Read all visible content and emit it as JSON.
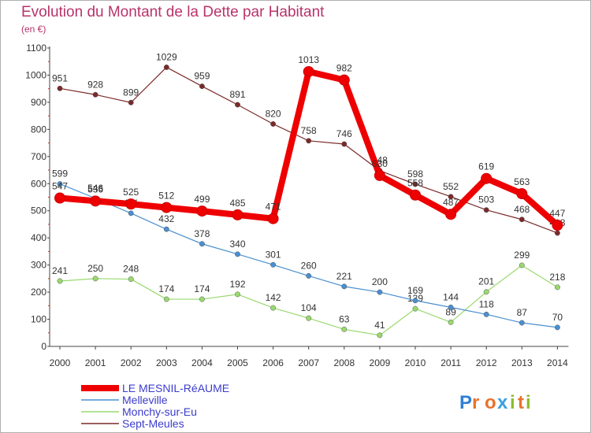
{
  "chart_data": {
    "type": "line",
    "title": "Evolution du Montant de la Dette par Habitant",
    "subtitle": "(en €)",
    "xlabel": "",
    "ylabel": "",
    "ylim": [
      0,
      1100
    ],
    "yticks": [
      0,
      100,
      200,
      300,
      400,
      500,
      600,
      700,
      800,
      900,
      1000,
      1100
    ],
    "x": [
      "2000",
      "2001",
      "2002",
      "2003",
      "2004",
      "2005",
      "2006",
      "2007",
      "2008",
      "2009",
      "2010",
      "2011",
      "2012",
      "2013",
      "2014"
    ],
    "grid": false,
    "legend_position": "bottom-left",
    "series": [
      {
        "name": "Sept-Meules",
        "color": "#7b2a2a",
        "values": [
          951,
          928,
          899,
          1029,
          959,
          891,
          820,
          758,
          746,
          648,
          598,
          552,
          503,
          468,
          418
        ]
      },
      {
        "name": "Monchy-sur-Eu",
        "color": "#99d96e",
        "values": [
          241,
          250,
          248,
          174,
          174,
          192,
          142,
          104,
          63,
          41,
          139,
          89,
          201,
          299,
          218
        ]
      },
      {
        "name": "Melleville",
        "color": "#4a8fd0",
        "values": [
          599,
          546,
          491,
          432,
          378,
          340,
          301,
          260,
          221,
          200,
          169,
          144,
          118,
          87,
          70
        ]
      },
      {
        "name": "LE MESNIL-RéAUME",
        "color": "#ee0000",
        "values": [
          547,
          536,
          525,
          512,
          499,
          485,
          471,
          1013,
          982,
          630,
          558,
          487,
          619,
          563,
          447
        ]
      }
    ]
  },
  "legend": {
    "items": [
      {
        "label": "LE MESNIL-RéAUME",
        "color": "#ee0000"
      },
      {
        "label": "Melleville",
        "color": "#4a8fd0"
      },
      {
        "label": "Monchy-sur-Eu",
        "color": "#99d96e"
      },
      {
        "label": "Sept-Meules",
        "color": "#7b2a2a"
      }
    ]
  },
  "brand": {
    "logo_text": "Proxiti"
  }
}
